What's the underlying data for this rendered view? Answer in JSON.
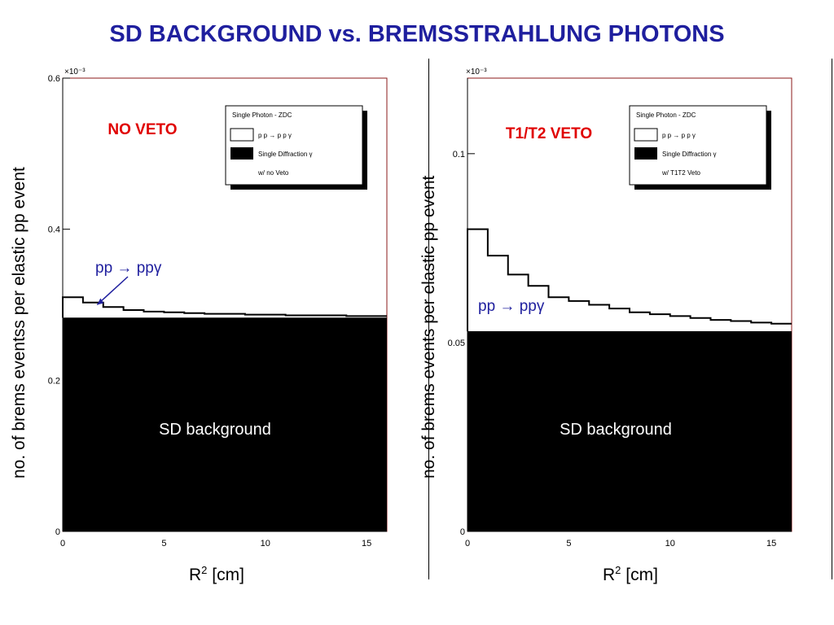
{
  "slide": {
    "title": "SD BACKGROUND vs. BREMSSTRAHLUNG PHOTONS"
  },
  "chart_data": [
    {
      "type": "area",
      "title": "NO VETO",
      "title_color": "#e00000",
      "ylabel": "no. of brems eventss per elastic pp event",
      "xlabel_base": "R",
      "xlabel_sup": "2",
      "xlabel_rest": " [cm]",
      "exponent_label": "×10⁻³",
      "xlim": [
        0,
        16
      ],
      "ylim": [
        0,
        0.6
      ],
      "x_ticks": [
        0,
        5,
        10,
        15
      ],
      "x_tick_labels": [
        "0",
        "5",
        "10",
        "15"
      ],
      "y_ticks": [
        0,
        0.2,
        0.4,
        0.6
      ],
      "y_tick_labels": [
        "0",
        "0.2",
        "0.4",
        "0.6"
      ],
      "legend": {
        "title": "Single Photon - ZDC",
        "entries": [
          {
            "label": "p p → p p γ",
            "style": "open"
          },
          {
            "label": "Single Diffraction γ",
            "style": "filled"
          },
          {
            "label": "w/ no Veto",
            "style": "none"
          }
        ],
        "position": "top-right"
      },
      "series": [
        {
          "name": "p p → p p γ",
          "style": "step",
          "bin_edges": [
            0,
            1,
            2,
            3,
            4,
            5,
            6,
            7,
            8,
            9,
            10,
            11,
            12,
            13,
            14,
            15,
            16
          ],
          "values": [
            0.31,
            0.303,
            0.297,
            0.293,
            0.291,
            0.29,
            0.289,
            0.288,
            0.288,
            0.287,
            0.287,
            0.286,
            0.286,
            0.286,
            0.285,
            0.285
          ]
        },
        {
          "name": "Single Diffraction γ",
          "style": "filled",
          "value": 0.283
        }
      ],
      "annotations": [
        {
          "text": "pp → ppγ",
          "color": "#1f1f9e",
          "type": "arrow-label",
          "target": [
            1.7,
            0.3
          ]
        },
        {
          "text": "SD background",
          "color": "#ffffff",
          "type": "label"
        }
      ]
    },
    {
      "type": "area",
      "title": "T1/T2 VETO",
      "title_color": "#e00000",
      "ylabel": "no. of brems events per elastic pp event",
      "xlabel_base": "R",
      "xlabel_sup": "2",
      "xlabel_rest": " [cm]",
      "exponent_label": "×10⁻³",
      "xlim": [
        0,
        16
      ],
      "ylim": [
        0,
        0.12
      ],
      "x_ticks": [
        0,
        5,
        10,
        15
      ],
      "x_tick_labels": [
        "0",
        "5",
        "10",
        "15"
      ],
      "y_ticks": [
        0,
        0.05,
        0.1
      ],
      "y_tick_labels": [
        "0",
        "0.05",
        "0.1"
      ],
      "legend": {
        "title": "Single Photon - ZDC",
        "entries": [
          {
            "label": "p p → p p γ",
            "style": "open"
          },
          {
            "label": "Single Diffraction γ",
            "style": "filled"
          },
          {
            "label": "w/ T1T2 Veto",
            "style": "none"
          }
        ],
        "position": "top-right"
      },
      "series": [
        {
          "name": "p p → p p γ",
          "style": "step",
          "bin_edges": [
            0,
            1,
            2,
            3,
            4,
            5,
            6,
            7,
            8,
            9,
            10,
            11,
            12,
            13,
            14,
            15,
            16
          ],
          "values": [
            0.08,
            0.073,
            0.068,
            0.065,
            0.062,
            0.061,
            0.06,
            0.059,
            0.058,
            0.0575,
            0.057,
            0.0565,
            0.056,
            0.0557,
            0.0553,
            0.055
          ]
        },
        {
          "name": "Single Diffraction γ",
          "style": "filled",
          "value": 0.053
        }
      ],
      "annotations": [
        {
          "text": "pp → ppγ",
          "color": "#1f1f9e",
          "type": "label"
        },
        {
          "text": "SD background",
          "color": "#ffffff",
          "type": "label"
        }
      ]
    }
  ]
}
